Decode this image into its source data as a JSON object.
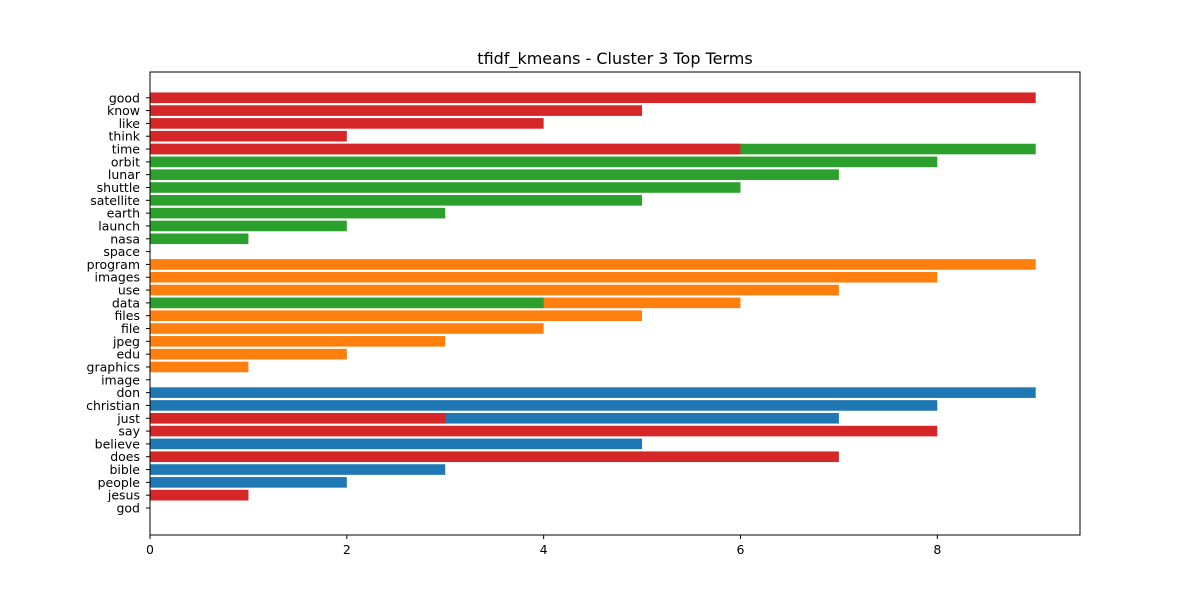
{
  "chart_data": {
    "type": "bar",
    "orientation": "horizontal",
    "title": "tfidf_kmeans - Cluster 3 Top Terms",
    "xlabel": "",
    "ylabel": "",
    "xlim": [
      0,
      9.45
    ],
    "xticks": [
      0,
      2,
      4,
      6,
      8
    ],
    "xtick_labels": [
      "0",
      "2",
      "4",
      "6",
      "8"
    ],
    "grid": false,
    "legend": "none",
    "colors": {
      "blue": "#1f77b4",
      "orange": "#ff7f0e",
      "green": "#2ca02c",
      "red": "#d62728"
    },
    "categories": [
      "god",
      "jesus",
      "people",
      "bible",
      "does",
      "believe",
      "say",
      "just",
      "christian",
      "don",
      "image",
      "graphics",
      "edu",
      "jpeg",
      "file",
      "files",
      "data",
      "use",
      "images",
      "program",
      "space",
      "nasa",
      "launch",
      "earth",
      "satellite",
      "shuttle",
      "lunar",
      "orbit",
      "time",
      "think",
      "like",
      "know",
      "good"
    ],
    "series": [
      {
        "color_key": "blue",
        "values": [
          0,
          1,
          2,
          3,
          0,
          5,
          0,
          7,
          8,
          9,
          0,
          0,
          0,
          0,
          0,
          0,
          0,
          0,
          0,
          0,
          0,
          0,
          0,
          0,
          0,
          0,
          0,
          0,
          0,
          0,
          0,
          0,
          0
        ]
      },
      {
        "color_key": "orange",
        "values": [
          0,
          0,
          0,
          0,
          0,
          0,
          0,
          0,
          0,
          0,
          0,
          1,
          2,
          3,
          4,
          5,
          6,
          7,
          8,
          9,
          0,
          0,
          0,
          0,
          0,
          0,
          0,
          0,
          0,
          0,
          0,
          0,
          0
        ]
      },
      {
        "color_key": "green",
        "values": [
          0,
          0,
          0,
          0,
          0,
          0,
          0,
          0,
          0,
          0,
          0,
          0,
          0,
          0,
          0,
          0,
          4,
          0,
          0,
          0,
          0,
          1,
          2,
          3,
          5,
          6,
          7,
          8,
          9,
          0,
          0,
          0,
          0
        ]
      },
      {
        "color_key": "red",
        "values": [
          0,
          1,
          0,
          0,
          7,
          0,
          8,
          3,
          0,
          0,
          0,
          0,
          0,
          0,
          0,
          0,
          0,
          0,
          0,
          0,
          0,
          0,
          0,
          0,
          0,
          0,
          0,
          0,
          6,
          2,
          4,
          5,
          9
        ]
      }
    ]
  }
}
